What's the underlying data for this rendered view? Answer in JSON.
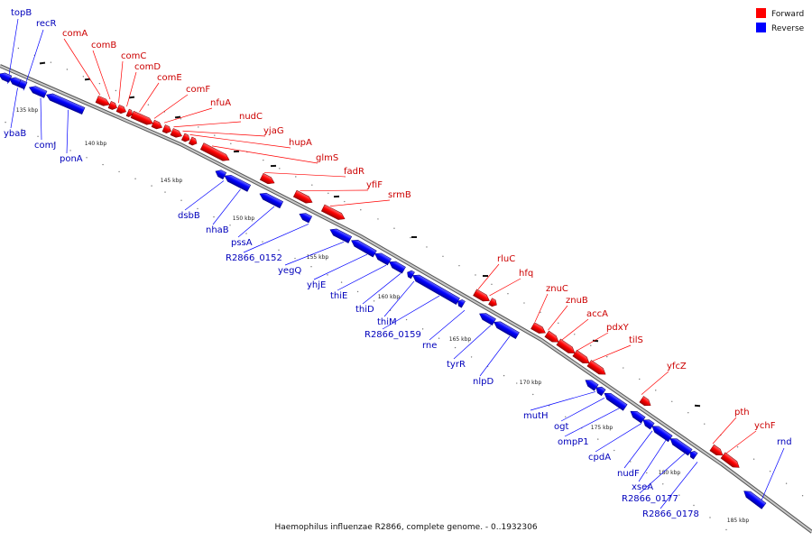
{
  "colors": {
    "forward": "#ff0000",
    "reverse": "#0000ff",
    "forward_label": "#cc0000",
    "reverse_label": "#0000bb",
    "backbone": "#888888"
  },
  "legend": {
    "forward": "Forward",
    "reverse": "Reverse"
  },
  "caption": "Haemophilus influenzae R2866, complete genome. - 0..1932306",
  "ticks": [
    "135 kbp",
    "140 kbp",
    "145 kbp",
    "150 kbp",
    "155 kbp",
    "160 kbp",
    "165 kbp",
    "170 kbp",
    "175 kbp",
    "180 kbp",
    "185 kbp"
  ],
  "forward_genes": [
    "comA",
    "comB",
    "comC",
    "comD",
    "comE",
    "comF",
    "nfuA",
    "nudC",
    "yjaG",
    "hupA",
    "glmS",
    "fadR",
    "yfiF",
    "srmB",
    "rluC",
    "hfq",
    "znuC",
    "znuB",
    "accA",
    "pdxY",
    "tilS",
    "yfcZ",
    "pth",
    "ychF"
  ],
  "reverse_genes": [
    "topB",
    "recR",
    "ybaB",
    "comJ",
    "ponA",
    "dsbB",
    "nhaB",
    "pssA",
    "R2866_0152",
    "yegQ",
    "yhjE",
    "thiE",
    "thiD",
    "thiM",
    "R2866_0159",
    "rne",
    "tyrR",
    "nlpD",
    "mutH",
    "ogt",
    "ompP1",
    "cpdA",
    "nudF",
    "xseA",
    "R2866_0177",
    "R2866_0178",
    "rnd"
  ]
}
